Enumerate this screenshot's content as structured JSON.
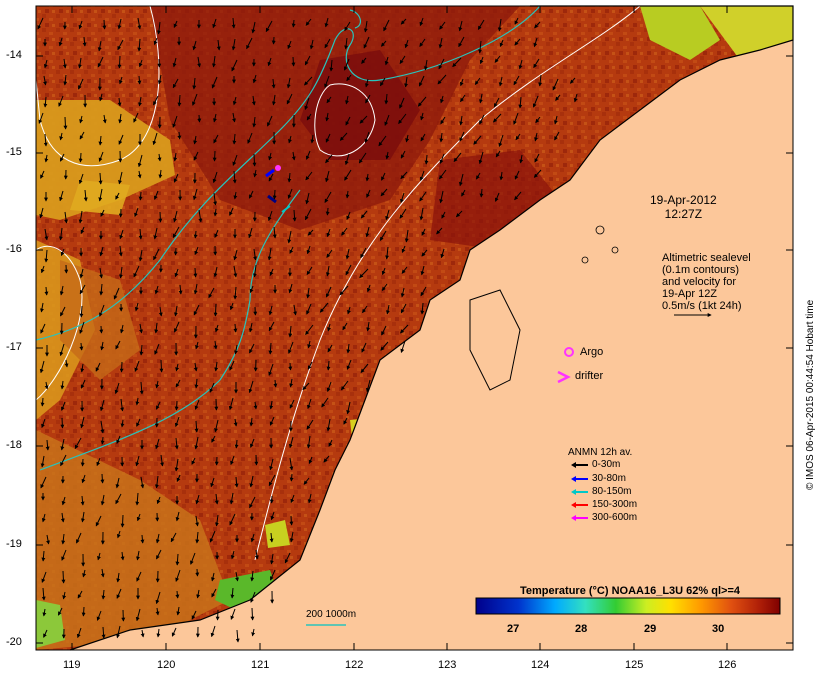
{
  "map": {
    "title_date": "19-Apr-2012",
    "title_time": "12:27Z",
    "altimetry_note": [
      "Altimetric sealevel",
      "(0.1m contours)",
      "and velocity for",
      "19-Apr 12Z",
      "0.5m/s (1kt 24h)"
    ],
    "argo_label": "Argo",
    "drifter_label": "drifter",
    "credit": "© IMOS 06-Apr-2015 00:44:54 Hobart time",
    "bathymetry_label": "200  1000m",
    "x_ticks": [
      "119",
      "120",
      "121",
      "122",
      "123",
      "124",
      "125",
      "126"
    ],
    "y_ticks": [
      "-14",
      "-15",
      "-16",
      "-17",
      "-18",
      "-19",
      "-20"
    ],
    "colors": {
      "land": "#fcc79a",
      "sst_warm": "#b8380f",
      "sst_hot": "#8a0e0e",
      "contour": "#ffffff",
      "bathymetry": "#29c3bb",
      "argo": "#ff33ff",
      "frame": "#000000"
    }
  },
  "colorbar": {
    "title": "Temperature (°C) NOAA16_L3U 62% ql>=4",
    "ticks": [
      "27",
      "28",
      "29",
      "30"
    ],
    "range": [
      26.5,
      31
    ]
  },
  "legend": {
    "title": "ANMN 12h av.",
    "items": [
      {
        "label": "0-30m",
        "color": "#000000"
      },
      {
        "label": "30-80m",
        "color": "#0000ff"
      },
      {
        "label": "80-150m",
        "color": "#00c8c8"
      },
      {
        "label": "150-300m",
        "color": "#ff0000"
      },
      {
        "label": "300-600m",
        "color": "#ff00ff"
      }
    ]
  }
}
